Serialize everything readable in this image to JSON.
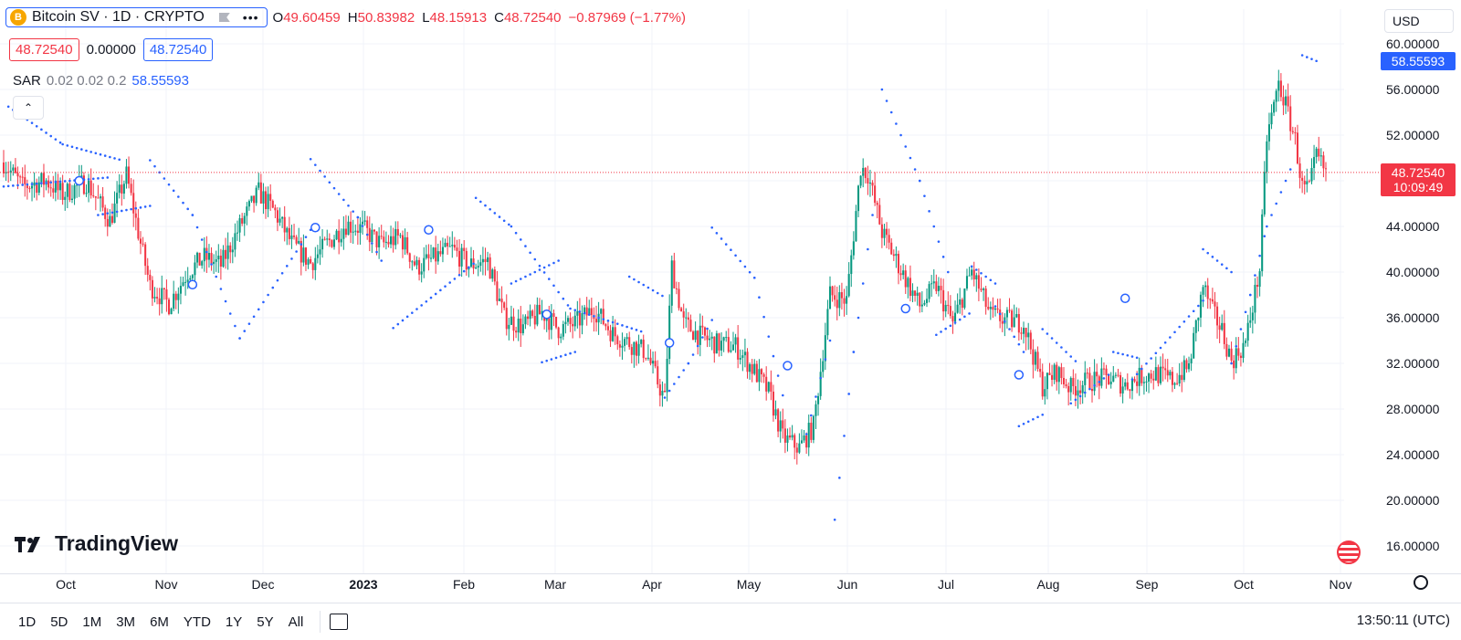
{
  "header": {
    "symbol": "Bitcoin SV · 1D · CRYPTO",
    "coin_glyph": "B",
    "more": "•••",
    "open_label": "O",
    "open": "49.60459",
    "high_label": "H",
    "high": "50.83982",
    "low_label": "L",
    "low": "48.15913",
    "close_label": "C",
    "close": "48.72540",
    "change": "−0.87969 (−1.77%)",
    "bid": "48.72540",
    "spread": "0.00000",
    "ask": "48.72540"
  },
  "indicator": {
    "name": "SAR",
    "params": "0.02 0.02 0.2",
    "value": "58.55593"
  },
  "collapse_glyph": "⌃",
  "currency": "USD",
  "logo": "TradingView",
  "price_badges": {
    "sar": "58.55593",
    "last": "48.72540",
    "countdown": "10:09:49"
  },
  "ranges": [
    "1D",
    "5D",
    "1M",
    "3M",
    "6M",
    "YTD",
    "1Y",
    "5Y",
    "All"
  ],
  "clock": "13:50:11 (UTC)",
  "colors": {
    "up": "#089981",
    "down": "#f23645",
    "sar": "#2962ff",
    "grid": "#f0f3fa"
  },
  "chart_data": {
    "type": "candlestick",
    "y_ticks": [
      "60.00000",
      "56.00000",
      "52.00000",
      "48.00000",
      "44.00000",
      "40.00000",
      "36.00000",
      "32.00000",
      "28.00000",
      "24.00000",
      "20.00000",
      "16.00000"
    ],
    "ylim": [
      16,
      60
    ],
    "x_ticks": [
      "Oct",
      "Nov",
      "Dec",
      "2023",
      "Feb",
      "Mar",
      "Apr",
      "May",
      "Jun",
      "Jul",
      "Aug",
      "Sep",
      "Oct",
      "Nov"
    ],
    "x_range": [
      "Sep 17",
      "Nov 2"
    ],
    "last_price": 48.7254,
    "close_path": [
      [
        0,
        49.6
      ],
      [
        8,
        47.5
      ],
      [
        18,
        48.0
      ],
      [
        25,
        46.8
      ],
      [
        35,
        47.9
      ],
      [
        45,
        44.5
      ],
      [
        52,
        48.5
      ],
      [
        58,
        42.5
      ],
      [
        62,
        38.8
      ],
      [
        70,
        37.2
      ],
      [
        78,
        40.0
      ],
      [
        85,
        41.3
      ],
      [
        92,
        40.6
      ],
      [
        100,
        44.0
      ],
      [
        108,
        47.0
      ],
      [
        115,
        45.2
      ],
      [
        122,
        42.5
      ],
      [
        130,
        40.8
      ],
      [
        137,
        42.5
      ],
      [
        145,
        44.2
      ],
      [
        152,
        43.8
      ],
      [
        160,
        42.4
      ],
      [
        168,
        43.1
      ],
      [
        175,
        40.4
      ],
      [
        182,
        41.2
      ],
      [
        190,
        42.0
      ],
      [
        197,
        40.6
      ],
      [
        205,
        41.0
      ],
      [
        212,
        36.0
      ],
      [
        220,
        35.2
      ],
      [
        228,
        36.5
      ],
      [
        235,
        35.0
      ],
      [
        242,
        35.5
      ],
      [
        250,
        36.8
      ],
      [
        258,
        34.6
      ],
      [
        265,
        33.8
      ],
      [
        272,
        33.0
      ],
      [
        280,
        28.8
      ],
      [
        283,
        40.5
      ],
      [
        288,
        35.5
      ],
      [
        295,
        34.4
      ],
      [
        302,
        33.7
      ],
      [
        310,
        33.5
      ],
      [
        318,
        31.3
      ],
      [
        324,
        29.5
      ],
      [
        330,
        25.5
      ],
      [
        337,
        24.6
      ],
      [
        343,
        26.5
      ],
      [
        350,
        38.0
      ],
      [
        357,
        37.5
      ],
      [
        363,
        49.2
      ],
      [
        366,
        48.6
      ],
      [
        372,
        43.5
      ],
      [
        380,
        40.2
      ],
      [
        388,
        37.0
      ],
      [
        395,
        38.8
      ],
      [
        402,
        35.5
      ],
      [
        410,
        40.1
      ],
      [
        418,
        36.2
      ],
      [
        425,
        35.8
      ],
      [
        432,
        35.5
      ],
      [
        440,
        30.0
      ],
      [
        446,
        31.3
      ],
      [
        452,
        29.8
      ],
      [
        460,
        30.5
      ],
      [
        468,
        30.7
      ],
      [
        475,
        30.1
      ],
      [
        482,
        30.9
      ],
      [
        488,
        31.1
      ],
      [
        495,
        30.5
      ],
      [
        502,
        31.7
      ],
      [
        508,
        38.8
      ],
      [
        512,
        36.5
      ],
      [
        516,
        34.9
      ],
      [
        520,
        32.2
      ],
      [
        526,
        33.8
      ],
      [
        532,
        40.3
      ],
      [
        535,
        51.8
      ],
      [
        540,
        56.5
      ],
      [
        543,
        54.6
      ],
      [
        547,
        51.6
      ],
      [
        550,
        47.4
      ],
      [
        553,
        47.2
      ],
      [
        556,
        50.2
      ],
      [
        560,
        48.7
      ]
    ],
    "volatility": 1.2,
    "sar_segments": [
      [
        [
          0,
          47.5
        ],
        [
          45,
          48.3
        ]
      ],
      [
        [
          2,
          54.5
        ],
        [
          25,
          51.2
        ],
        [
          50,
          49.8
        ]
      ],
      [
        [
          40,
          45.0
        ],
        [
          62,
          45.8
        ]
      ],
      [
        [
          62,
          49.8
        ],
        [
          80,
          45.0
        ],
        [
          100,
          34.2
        ]
      ],
      [
        [
          100,
          34.2
        ],
        [
          130,
          43.7
        ]
      ],
      [
        [
          130,
          49.9
        ],
        [
          150,
          44.8
        ],
        [
          160,
          41.0
        ]
      ],
      [
        [
          165,
          35.1
        ],
        [
          200,
          40.9
        ]
      ],
      [
        [
          200,
          46.5
        ],
        [
          215,
          44.0
        ],
        [
          240,
          36.8
        ]
      ],
      [
        [
          215,
          39.0
        ],
        [
          235,
          41.0
        ]
      ],
      [
        [
          228,
          32.1
        ],
        [
          242,
          33.0
        ]
      ],
      [
        [
          240,
          36.8
        ],
        [
          270,
          34.8
        ]
      ],
      [
        [
          265,
          39.6
        ],
        [
          280,
          37.8
        ]
      ],
      [
        [
          280,
          29.0
        ],
        [
          290,
          32.0
        ],
        [
          300,
          35.8
        ]
      ],
      [
        [
          300,
          43.9
        ],
        [
          318,
          39.5
        ],
        [
          330,
          29.2
        ]
      ],
      [
        [
          340,
          25.8
        ],
        [
          350,
          34.0
        ]
      ],
      [
        [
          352,
          18.3
        ],
        [
          360,
          33.0
        ],
        [
          368,
          45.0
        ]
      ],
      [
        [
          372,
          56.0
        ],
        [
          388,
          48.0
        ],
        [
          400,
          40.0
        ]
      ],
      [
        [
          395,
          34.5
        ],
        [
          410,
          36.5
        ]
      ],
      [
        [
          410,
          40.5
        ],
        [
          420,
          39.0
        ]
      ],
      [
        [
          420,
          37.0
        ],
        [
          432,
          33.0
        ]
      ],
      [
        [
          430,
          26.5
        ],
        [
          440,
          27.5
        ]
      ],
      [
        [
          440,
          35.0
        ],
        [
          455,
          32.0
        ]
      ],
      [
        [
          452,
          28.5
        ],
        [
          468,
          31.0
        ]
      ],
      [
        [
          470,
          33.0
        ],
        [
          480,
          32.5
        ]
      ],
      [
        [
          478,
          30.6
        ],
        [
          508,
          37.5
        ]
      ],
      [
        [
          508,
          42.0
        ],
        [
          520,
          40.0
        ]
      ],
      [
        [
          520,
          32.0
        ],
        [
          528,
          38.0
        ],
        [
          535,
          44.0
        ],
        [
          545,
          49.0
        ]
      ],
      [
        [
          550,
          59.0
        ],
        [
          556,
          58.5
        ]
      ]
    ],
    "sar_markers": [
      [
        32,
        48.0
      ],
      [
        80,
        38.9
      ],
      [
        132,
        43.9
      ],
      [
        180,
        43.7
      ],
      [
        230,
        36.3
      ],
      [
        282,
        33.8
      ],
      [
        332,
        31.8
      ],
      [
        382,
        36.8
      ],
      [
        430,
        31.0
      ],
      [
        475,
        37.7
      ]
    ]
  }
}
